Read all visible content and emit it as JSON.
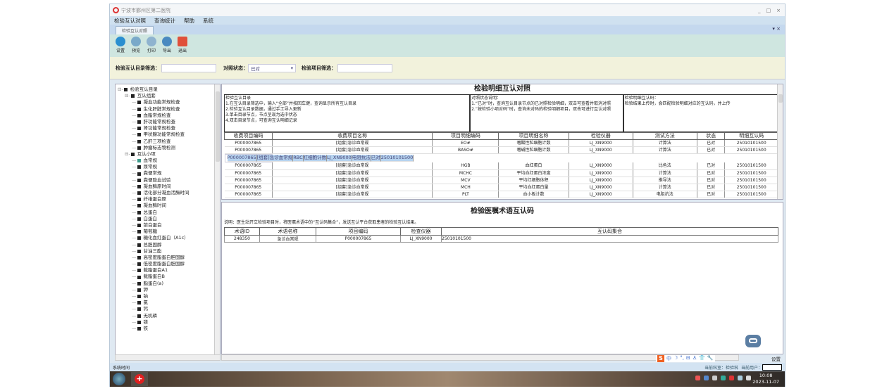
{
  "window": {
    "title": "宁波市鄞州区第二医院",
    "controls": [
      "_",
      "□",
      "×"
    ]
  },
  "menu": [
    "检验互认对照",
    "查询统计",
    "帮助",
    "系统"
  ],
  "tab": {
    "label": "检验互认对照",
    "controls": "▾ ×"
  },
  "toolbar": [
    {
      "label": "设置",
      "icon": "gear-icon",
      "color": "#2a8fd0"
    },
    {
      "label": "预览",
      "icon": "preview-icon",
      "color": "#7aa9c9"
    },
    {
      "label": "打印",
      "icon": "printer-icon",
      "color": "#8fb3cf"
    },
    {
      "label": "导出",
      "icon": "export-icon",
      "color": "#4a8ac0"
    },
    {
      "label": "退出",
      "icon": "power-icon",
      "color": "#e0503a"
    }
  ],
  "filters": {
    "catalog_label": "检验互认目录筛选：",
    "catalog_value": "",
    "status_label": "对照状态：",
    "status_value": "已对",
    "item_label": "检验项目筛选：",
    "item_value": ""
  },
  "tree": {
    "root": "检验互认目录",
    "groups": [
      {
        "label": "互认组套",
        "items": [
          "凝血功能常规检查",
          "生化肝脏常规检查",
          "血脂常规检查",
          "肝功能常规检查",
          "肾功能常规检查",
          "甲状腺功能常规检查",
          "乙肝三项检查",
          "肿瘤标志物检测"
        ]
      },
      {
        "label": "互认小项",
        "items": [
          "血常规",
          "尿常规",
          "粪便常规",
          "粪便隐血试验",
          "凝血酶原时间",
          "活化部分凝血活酶时间",
          "纤维蛋白原",
          "凝血酶时间",
          "总蛋白",
          "白蛋白",
          "前白蛋白",
          "葡萄糖",
          "糖化血红蛋白（A1c）",
          "总胆固醇",
          "甘油三酯",
          "高密度脂蛋白胆固醇",
          "低密度脂蛋白胆固醇",
          "载脂蛋白A1",
          "载脂蛋白B",
          "脂蛋白(a)",
          "钾",
          "钠",
          "氯",
          "钙",
          "无机磷",
          "镁",
          "铁"
        ]
      }
    ]
  },
  "detail": {
    "title": "检验明细互认对照",
    "note1": "检验互认目录\n1.在互认目录筛选中，输入“全部”并按回车键，查询显示所有互认目录\n2.检验互认目录数据，通过手工导入更新\n3.单击目录节点，节点呈现为选中状态\n4.双击目录节点，可查询互认明细记录",
    "note2": "对照状态说明：\n1.“已对”时，查询互认目录节点的已对照检验明细，双击可查看并取消对照\n2.“按检验小项对码”时，查询未对码的检验明细项目，双击可进行互认对照",
    "note3": "检验明细互认码：\n检验结果上传时，会匹配检验明细对应的互认码，并上传",
    "columns": [
      "收费项目编码",
      "收费项目名称",
      "项目明细编码",
      "项目明细名称",
      "检验仪器",
      "测试方法",
      "状态",
      "明细互认码"
    ],
    "rows": [
      [
        "P000007865",
        "[组套]急诊血常规",
        "EO#",
        "嗜酸性粒细胞计数",
        "LJ_XN9000",
        "计算法",
        "已对",
        "25010101500"
      ],
      [
        "P000007865",
        "[组套]急诊血常规",
        "BASO#",
        "嗜碱性粒细胞计数",
        "LJ_XN9000",
        "计算法",
        "已对",
        "25010101500"
      ],
      [
        "P000007865",
        "[组套]急诊血常规",
        "RBC",
        "红细胞计数",
        "LJ_XN9000",
        "电阻抗法",
        "已对",
        "25010101500"
      ],
      [
        "P000007865",
        "[组套]急诊血常规",
        "HGB",
        "血红蛋白",
        "LJ_XN9000",
        "比色法",
        "已对",
        "25010101500"
      ],
      [
        "P000007865",
        "[组套]急诊血常规",
        "MCHC",
        "平均血红蛋白浓度",
        "LJ_XN9000",
        "计算法",
        "已对",
        "25010101500"
      ],
      [
        "P000007865",
        "[组套]急诊血常规",
        "MCV",
        "平均红细胞体积",
        "LJ_XN9000",
        "推导法",
        "已对",
        "25010101500"
      ],
      [
        "P000007865",
        "[组套]急诊血常规",
        "MCH",
        "平均血红蛋白量",
        "LJ_XN9000",
        "计算法",
        "已对",
        "25010101500"
      ],
      [
        "P000007865",
        "[组套]急诊血常规",
        "PLT",
        "血小板计数",
        "LJ_XN9000",
        "电阻抗法",
        "已对",
        "25010101500"
      ]
    ],
    "selected_row": 2
  },
  "order": {
    "title": "检验医嘱术语互认码",
    "note": "说明：医生站开立检验项目时，将医嘱术语中的“互认码集合”，发送互认平台获取患者的检验互认结果。",
    "columns": [
      "术语ID",
      "术语名称",
      "项目编码",
      "检查仪器",
      "互认码集合"
    ],
    "rows": [
      [
        "248350",
        "急诊血常规",
        "P000007865",
        "LJ_XN9000",
        "25010101500"
      ]
    ]
  },
  "ime": {
    "items": [
      "中",
      "☽",
      "°,",
      "⊟",
      "♙",
      "👕",
      "🔧"
    ]
  },
  "settings_label": "设置",
  "status": {
    "left": "系统时间",
    "dept": "当前科室：检验科",
    "user_label": "当前用户："
  },
  "taskbar": {
    "time": "10:08",
    "date": "2023-11-07",
    "red_app": "+"
  }
}
